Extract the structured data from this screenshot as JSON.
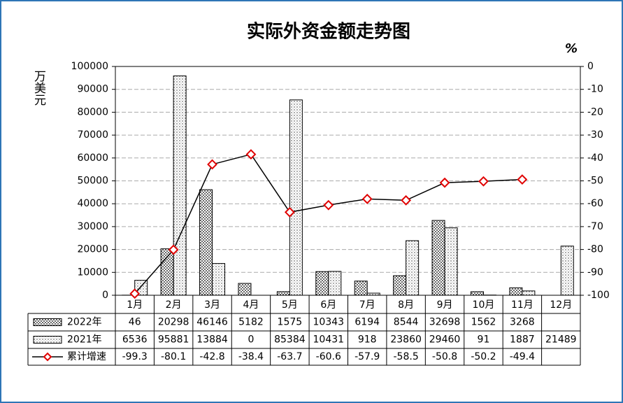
{
  "chart_data": {
    "type": "bar_line",
    "title": "实际外资金额走势图",
    "y_label": "万美元",
    "y2_label": "%",
    "categories": [
      "1月",
      "2月",
      "3月",
      "4月",
      "5月",
      "6月",
      "7月",
      "8月",
      "9月",
      "10月",
      "11月",
      "12月"
    ],
    "series": [
      {
        "name": "2022年",
        "type": "bar",
        "color": "#000000",
        "values": [
          46,
          20298,
          46146,
          5182,
          1575,
          10343,
          6194,
          8544,
          32698,
          1562,
          3268,
          null
        ]
      },
      {
        "name": "2021年",
        "type": "bar",
        "color": "#000000",
        "values": [
          6536,
          95881,
          13884,
          0,
          85384,
          10431,
          918,
          23860,
          29460,
          91,
          1887,
          21489
        ]
      },
      {
        "name": "累计增速",
        "type": "line",
        "axis": "y2",
        "color": "#e00000",
        "values": [
          -99.3,
          -80.1,
          -42.8,
          -38.4,
          -63.7,
          -60.6,
          -57.9,
          -58.5,
          -50.8,
          -50.2,
          -49.4,
          null
        ]
      }
    ],
    "ylim": [
      0,
      100000
    ],
    "yticks": [
      0,
      10000,
      20000,
      30000,
      40000,
      50000,
      60000,
      70000,
      80000,
      90000,
      100000
    ],
    "y2lim": [
      -100,
      0
    ],
    "y2ticks": [
      0,
      -10,
      -20,
      -30,
      -40,
      -50,
      -60,
      -70,
      -80,
      -90,
      -100
    ],
    "grid": true
  }
}
